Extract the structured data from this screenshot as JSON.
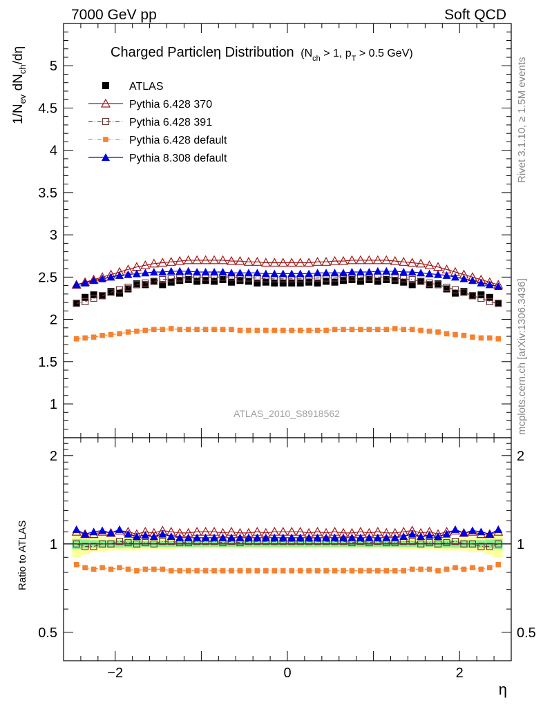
{
  "header": {
    "left": "7000 GeV pp",
    "right": "Soft QCD"
  },
  "side_labels": {
    "top": "Rivet 3.1.10, ≥ 1.5M events",
    "bottom": "mcplots.cern.ch [arXiv:1306.3436]"
  },
  "watermark": "ATLAS_2010_S8918562",
  "colors": {
    "data": "#000000",
    "pythia6_370": "#a01818",
    "pythia6_391": "#6b3a3a",
    "pythia6_default": "#f58231",
    "pythia8_default": "#0000dd",
    "band_inner": "#90ee90",
    "band_outer": "#ffff99"
  },
  "chart_data": [
    {
      "type": "scatter",
      "title": "Charged Particleη Distribution",
      "title_sub": "(N_ch > 1, p_T > 0.5 GeV)",
      "ylabel": "1/N_ev dN_ch/dη",
      "xlabel": "η",
      "xlim": [
        -2.6,
        2.6
      ],
      "ylim": [
        0.6,
        5.5
      ],
      "xticks": [
        -2,
        0,
        2
      ],
      "xtick_labels": [
        "−2",
        "0",
        "2"
      ],
      "yticks": [
        1,
        1.5,
        2,
        2.5,
        3,
        3.5,
        4,
        4.5,
        5
      ],
      "ytick_labels": [
        "1",
        "1.5",
        "2",
        "2.5",
        "3",
        "3.5",
        "4",
        "4.5",
        "5"
      ],
      "legend_position": "top-left",
      "x": [
        -2.45,
        -2.35,
        -2.25,
        -2.15,
        -2.05,
        -1.95,
        -1.85,
        -1.75,
        -1.65,
        -1.55,
        -1.45,
        -1.35,
        -1.25,
        -1.15,
        -1.05,
        -0.95,
        -0.85,
        -0.75,
        -0.65,
        -0.55,
        -0.45,
        -0.35,
        -0.25,
        -0.15,
        -0.05,
        0.05,
        0.15,
        0.25,
        0.35,
        0.45,
        0.55,
        0.65,
        0.75,
        0.85,
        0.95,
        1.05,
        1.15,
        1.25,
        1.35,
        1.45,
        1.55,
        1.65,
        1.75,
        1.85,
        1.95,
        2.05,
        2.15,
        2.25,
        2.35,
        2.45
      ],
      "series": [
        {
          "name": "ATLAS",
          "marker": "filled-square",
          "colorKey": "data",
          "values": [
            2.19,
            2.26,
            2.29,
            2.28,
            2.33,
            2.31,
            2.36,
            2.42,
            2.41,
            2.45,
            2.41,
            2.44,
            2.46,
            2.47,
            2.45,
            2.46,
            2.45,
            2.47,
            2.44,
            2.46,
            2.45,
            2.43,
            2.44,
            2.43,
            2.43,
            2.43,
            2.43,
            2.44,
            2.43,
            2.45,
            2.44,
            2.46,
            2.47,
            2.45,
            2.47,
            2.45,
            2.47,
            2.46,
            2.44,
            2.41,
            2.45,
            2.41,
            2.42,
            2.36,
            2.31,
            2.33,
            2.28,
            2.29,
            2.26,
            2.19
          ]
        },
        {
          "name": "Pythia 6.428 370",
          "marker": "open-triangle",
          "line": "solid",
          "colorKey": "pythia6_370",
          "values": [
            2.41,
            2.44,
            2.47,
            2.5,
            2.53,
            2.56,
            2.59,
            2.62,
            2.64,
            2.66,
            2.67,
            2.68,
            2.69,
            2.7,
            2.7,
            2.7,
            2.7,
            2.7,
            2.69,
            2.69,
            2.68,
            2.68,
            2.67,
            2.67,
            2.67,
            2.67,
            2.67,
            2.67,
            2.68,
            2.68,
            2.69,
            2.69,
            2.7,
            2.7,
            2.7,
            2.7,
            2.7,
            2.69,
            2.68,
            2.67,
            2.66,
            2.64,
            2.62,
            2.59,
            2.56,
            2.53,
            2.5,
            2.47,
            2.44,
            2.41
          ]
        },
        {
          "name": "Pythia 6.428 391",
          "marker": "open-square",
          "line": "dashdot",
          "colorKey": "pythia6_391",
          "values": [
            2.19,
            2.21,
            2.25,
            2.28,
            2.32,
            2.35,
            2.38,
            2.41,
            2.43,
            2.45,
            2.47,
            2.48,
            2.49,
            2.5,
            2.5,
            2.5,
            2.5,
            2.5,
            2.5,
            2.49,
            2.49,
            2.49,
            2.48,
            2.48,
            2.48,
            2.48,
            2.48,
            2.48,
            2.49,
            2.49,
            2.49,
            2.5,
            2.5,
            2.5,
            2.5,
            2.5,
            2.5,
            2.49,
            2.48,
            2.47,
            2.45,
            2.43,
            2.41,
            2.38,
            2.35,
            2.32,
            2.28,
            2.25,
            2.21,
            2.19
          ]
        },
        {
          "name": "Pythia 6.428 default",
          "marker": "filled-small-square",
          "line": "dashdot",
          "colorKey": "pythia6_default",
          "values": [
            1.77,
            1.78,
            1.79,
            1.81,
            1.82,
            1.83,
            1.85,
            1.86,
            1.87,
            1.88,
            1.88,
            1.89,
            1.88,
            1.88,
            1.88,
            1.88,
            1.88,
            1.88,
            1.88,
            1.87,
            1.87,
            1.87,
            1.87,
            1.87,
            1.87,
            1.87,
            1.87,
            1.87,
            1.87,
            1.87,
            1.88,
            1.88,
            1.88,
            1.88,
            1.88,
            1.88,
            1.88,
            1.89,
            1.88,
            1.88,
            1.87,
            1.86,
            1.85,
            1.83,
            1.82,
            1.81,
            1.79,
            1.78,
            1.78,
            1.77
          ]
        },
        {
          "name": "Pythia 8.308 default",
          "marker": "filled-triangle",
          "line": "solid",
          "colorKey": "pythia8_default",
          "values": [
            2.41,
            2.43,
            2.46,
            2.48,
            2.5,
            2.52,
            2.53,
            2.54,
            2.55,
            2.56,
            2.56,
            2.57,
            2.57,
            2.57,
            2.56,
            2.56,
            2.56,
            2.56,
            2.55,
            2.55,
            2.55,
            2.55,
            2.54,
            2.54,
            2.54,
            2.54,
            2.54,
            2.54,
            2.55,
            2.55,
            2.55,
            2.55,
            2.56,
            2.56,
            2.56,
            2.57,
            2.57,
            2.57,
            2.56,
            2.56,
            2.55,
            2.54,
            2.53,
            2.52,
            2.5,
            2.48,
            2.46,
            2.43,
            2.41,
            2.39
          ]
        }
      ]
    },
    {
      "type": "scatter",
      "title": "",
      "ylabel": "Ratio to ATLAS",
      "xlabel": "η",
      "xlim": [
        -2.6,
        2.6
      ],
      "ylim": [
        0.4,
        2.3
      ],
      "xticks": [
        -2,
        0,
        2
      ],
      "xtick_labels": [
        "−2",
        "0",
        "2"
      ],
      "yticks": [
        0.5,
        1,
        2
      ],
      "ytick_labels": [
        "0.5",
        "1",
        "2"
      ],
      "band_inner_half_width": [
        0.04,
        0.035,
        0.03,
        0.03,
        0.03,
        0.03,
        0.03,
        0.03,
        0.025,
        0.025,
        0.025,
        0.025,
        0.025,
        0.025,
        0.025,
        0.025,
        0.025,
        0.025,
        0.025,
        0.025,
        0.025,
        0.025,
        0.025,
        0.025,
        0.025,
        0.025,
        0.025,
        0.025,
        0.025,
        0.025,
        0.025,
        0.025,
        0.025,
        0.025,
        0.025,
        0.025,
        0.025,
        0.025,
        0.025,
        0.025,
        0.025,
        0.025,
        0.03,
        0.03,
        0.03,
        0.03,
        0.03,
        0.03,
        0.035,
        0.04
      ],
      "band_outer_half_width": [
        0.1,
        0.08,
        0.06,
        0.06,
        0.05,
        0.05,
        0.05,
        0.05,
        0.04,
        0.04,
        0.04,
        0.04,
        0.035,
        0.035,
        0.035,
        0.035,
        0.035,
        0.035,
        0.035,
        0.035,
        0.035,
        0.035,
        0.035,
        0.035,
        0.035,
        0.035,
        0.035,
        0.035,
        0.035,
        0.035,
        0.035,
        0.035,
        0.035,
        0.035,
        0.035,
        0.035,
        0.035,
        0.035,
        0.04,
        0.04,
        0.04,
        0.04,
        0.05,
        0.05,
        0.05,
        0.05,
        0.06,
        0.06,
        0.08,
        0.1
      ],
      "series": [
        {
          "name": "Pythia 6.428 370",
          "marker": "open-triangle",
          "line": "solid",
          "colorKey": "pythia6_370",
          "values": [
            1.1,
            1.08,
            1.08,
            1.1,
            1.09,
            1.11,
            1.1,
            1.08,
            1.1,
            1.09,
            1.11,
            1.1,
            1.09,
            1.09,
            1.1,
            1.1,
            1.1,
            1.09,
            1.1,
            1.09,
            1.09,
            1.1,
            1.09,
            1.1,
            1.1,
            1.1,
            1.1,
            1.09,
            1.1,
            1.09,
            1.1,
            1.09,
            1.09,
            1.1,
            1.09,
            1.1,
            1.09,
            1.09,
            1.1,
            1.11,
            1.09,
            1.1,
            1.08,
            1.1,
            1.11,
            1.09,
            1.1,
            1.08,
            1.08,
            1.1
          ]
        },
        {
          "name": "Pythia 6.428 391",
          "marker": "open-square",
          "line": "dashdot",
          "colorKey": "pythia6_391",
          "values": [
            1.0,
            0.98,
            0.98,
            1.0,
            1.0,
            1.02,
            1.01,
            1.0,
            1.01,
            1.0,
            1.02,
            1.02,
            1.01,
            1.01,
            1.02,
            1.02,
            1.02,
            1.01,
            1.02,
            1.01,
            1.02,
            1.02,
            1.02,
            1.02,
            1.02,
            1.02,
            1.02,
            1.02,
            1.02,
            1.02,
            1.02,
            1.02,
            1.01,
            1.02,
            1.01,
            1.02,
            1.01,
            1.01,
            1.02,
            1.02,
            1.0,
            1.01,
            1.0,
            1.01,
            1.02,
            1.0,
            1.0,
            0.98,
            0.98,
            1.0
          ]
        },
        {
          "name": "Pythia 6.428 default",
          "marker": "filled-small-square",
          "line": "dashdot",
          "colorKey": "pythia6_default",
          "values": [
            0.85,
            0.83,
            0.82,
            0.83,
            0.82,
            0.83,
            0.82,
            0.81,
            0.82,
            0.82,
            0.82,
            0.81,
            0.81,
            0.81,
            0.81,
            0.81,
            0.81,
            0.81,
            0.81,
            0.81,
            0.81,
            0.81,
            0.81,
            0.81,
            0.81,
            0.81,
            0.81,
            0.81,
            0.81,
            0.81,
            0.81,
            0.81,
            0.81,
            0.81,
            0.81,
            0.81,
            0.81,
            0.81,
            0.81,
            0.82,
            0.82,
            0.82,
            0.81,
            0.82,
            0.83,
            0.82,
            0.83,
            0.82,
            0.83,
            0.85
          ]
        },
        {
          "name": "Pythia 8.308 default",
          "marker": "filled-triangle",
          "line": "solid",
          "colorKey": "pythia8_default",
          "values": [
            1.12,
            1.08,
            1.1,
            1.11,
            1.09,
            1.12,
            1.08,
            1.06,
            1.07,
            1.06,
            1.08,
            1.06,
            1.05,
            1.05,
            1.05,
            1.05,
            1.05,
            1.05,
            1.05,
            1.05,
            1.05,
            1.05,
            1.05,
            1.05,
            1.05,
            1.05,
            1.05,
            1.05,
            1.05,
            1.05,
            1.05,
            1.05,
            1.05,
            1.05,
            1.05,
            1.05,
            1.05,
            1.05,
            1.06,
            1.08,
            1.06,
            1.07,
            1.06,
            1.08,
            1.12,
            1.09,
            1.11,
            1.1,
            1.08,
            1.12
          ]
        }
      ]
    }
  ]
}
